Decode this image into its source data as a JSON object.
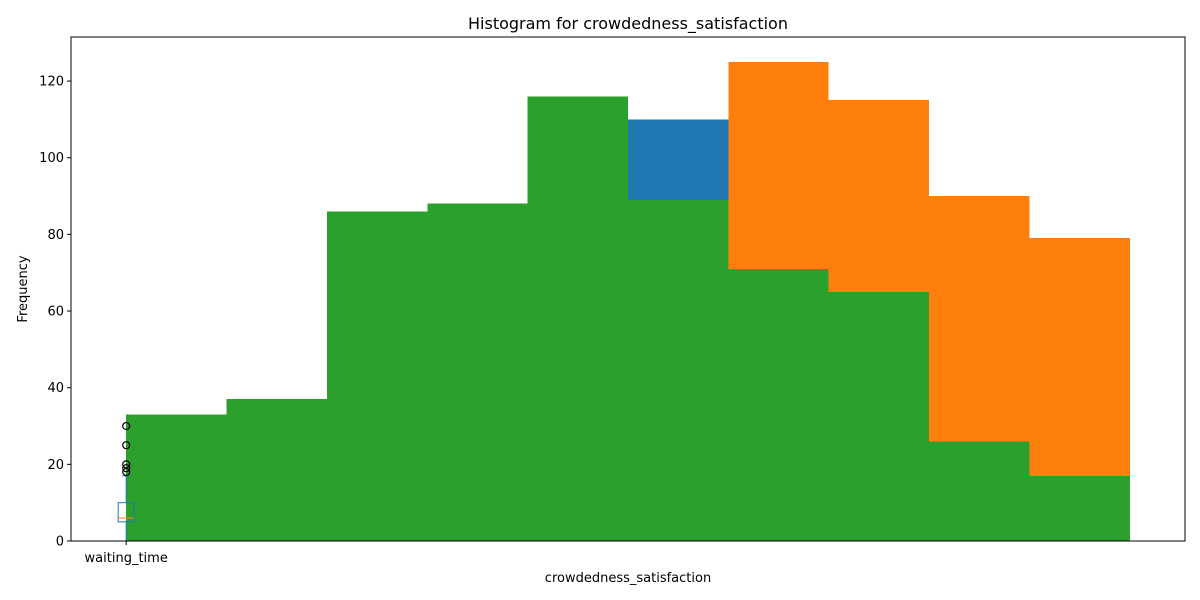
{
  "chart_data": {
    "type": "bar",
    "title": "Histogram for crowdedness_satisfaction",
    "xlabel": "crowdedness_satisfaction",
    "ylabel": "Frequency",
    "ylim": [
      0,
      131.5
    ],
    "y_ticks": [
      0,
      20,
      40,
      60,
      80,
      100,
      120
    ],
    "x_tick_labels": [
      "waiting_time"
    ],
    "grid": false,
    "x_range": [
      0.45,
      11.55
    ],
    "bin_edges": [
      1,
      2,
      3,
      4,
      5,
      6,
      7,
      8,
      9,
      10,
      11
    ],
    "series": [
      {
        "color": "#1f77b4",
        "values": [
          33,
          37,
          86,
          88,
          116,
          110,
          71,
          65,
          26,
          17
        ]
      },
      {
        "color": "#ff7f0e",
        "values": [
          33,
          37,
          86,
          88,
          116,
          89,
          125,
          115,
          90,
          79
        ]
      },
      {
        "color": "#2ca02c",
        "values": [
          33,
          37,
          86,
          88,
          116,
          89,
          71,
          65,
          26,
          17
        ]
      }
    ],
    "boxplot": {
      "label": "waiting_time",
      "color": "#1f77b4",
      "x": 1,
      "whisker_low": 0,
      "q1": 5,
      "median": 6,
      "q3": 10,
      "whisker_high": 17,
      "fliers": [
        18,
        19,
        20,
        25,
        30
      ]
    }
  }
}
